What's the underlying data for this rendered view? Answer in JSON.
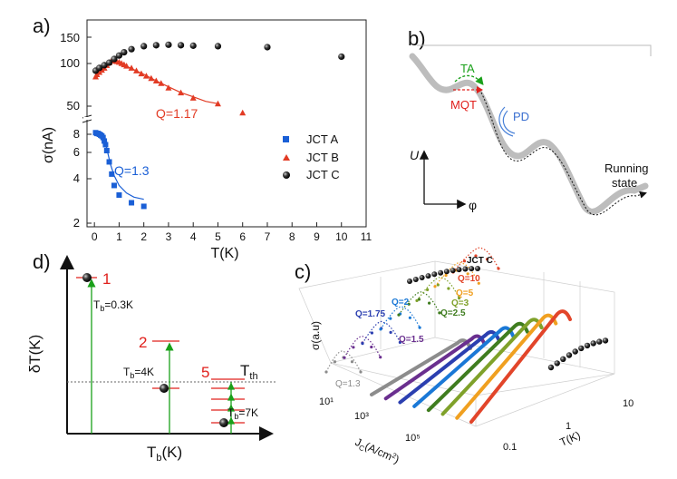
{
  "chart_data": [
    {
      "panel": "a)",
      "type": "scatter",
      "xlabel": "T(K)",
      "ylabel": "σ(nA)",
      "xlim": [
        -0.3,
        11
      ],
      "x_ticks": [
        "0",
        "1",
        "2",
        "3",
        "4",
        "5",
        "6",
        "7",
        "8",
        "9",
        "10",
        "11"
      ],
      "y_ticks_upper": [
        "50",
        "100",
        "150"
      ],
      "y_ticks_lower": [
        "2",
        "4",
        "6",
        "8"
      ],
      "series": [
        {
          "name": "JCT A",
          "color": "#1a5fd6",
          "marker": "square",
          "x": [
            0.05,
            0.1,
            0.15,
            0.2,
            0.25,
            0.3,
            0.35,
            0.4,
            0.45,
            0.5,
            0.6,
            0.7,
            0.8,
            1.0,
            1.5,
            2.0
          ],
          "y": [
            8.2,
            8.1,
            8.1,
            8.0,
            7.9,
            7.8,
            7.6,
            7.2,
            6.8,
            6.2,
            5.2,
            4.3,
            3.6,
            3.1,
            2.75,
            2.6
          ],
          "fit_label": "Q=1.3",
          "fit_x": [
            0.05,
            0.2,
            0.35,
            0.5,
            0.65,
            0.8,
            1.0,
            1.3,
            1.6,
            2.0
          ],
          "fit_y": [
            8.3,
            8.15,
            7.6,
            6.4,
            5.0,
            4.2,
            3.6,
            3.2,
            3.0,
            2.9
          ]
        },
        {
          "name": "JCT B",
          "color": "#e23b24",
          "marker": "triangle",
          "x": [
            0.05,
            0.1,
            0.2,
            0.3,
            0.4,
            0.5,
            0.6,
            0.7,
            0.8,
            0.9,
            1.0,
            1.1,
            1.2,
            1.3,
            1.5,
            1.7,
            1.9,
            2.1,
            2.3,
            2.5,
            2.7,
            3.0,
            3.5,
            4.0,
            5.0,
            6.0
          ],
          "y": [
            80,
            83,
            86,
            89,
            92,
            96,
            100,
            104,
            103,
            102,
            101,
            99,
            97,
            95,
            92,
            88,
            84,
            81,
            78,
            75,
            72,
            67,
            62,
            57,
            52,
            45
          ],
          "fit_label": "Q=1.17",
          "fit_x": [
            0.05,
            0.3,
            0.6,
            0.8,
            1.0,
            1.5,
            2.0,
            2.5,
            3.0,
            3.5,
            4.0,
            4.5,
            5.0
          ],
          "fit_y": [
            84,
            91,
            102,
            104,
            100,
            91,
            83,
            75,
            68,
            62,
            58,
            54,
            52
          ]
        },
        {
          "name": "JCT C",
          "color": "#111111",
          "marker": "sphere",
          "x": [
            0.05,
            0.2,
            0.4,
            0.6,
            0.8,
            1.0,
            1.2,
            1.5,
            2.0,
            2.5,
            3.0,
            3.5,
            4.0,
            5.0,
            7.0,
            10.0
          ],
          "y": [
            88,
            92,
            96,
            100,
            106,
            112,
            118,
            124,
            130,
            132,
            133,
            132,
            131,
            130,
            128,
            110
          ]
        }
      ]
    },
    {
      "panel": "c)",
      "type": "line",
      "title": "JCT C",
      "zlabel": "σ(a.u)",
      "xlabel": "T(K)",
      "ylabel": "J_C (A/cm²)",
      "x_ticks": [
        "0.1",
        "1",
        "10"
      ],
      "y_ticks": [
        "10¹",
        "10³",
        "10⁵"
      ],
      "series": [
        {
          "name": "Q=1.3",
          "color": "#8c8c8c"
        },
        {
          "name": "Q=1.5",
          "color": "#6a2f8f"
        },
        {
          "name": "Q=1.75",
          "color": "#2b3fb0"
        },
        {
          "name": "Q=2",
          "color": "#1a78d6"
        },
        {
          "name": "Q=2.5",
          "color": "#3f7d1f"
        },
        {
          "name": "Q=3",
          "color": "#7fa12a"
        },
        {
          "name": "Q=5",
          "color": "#f0a020"
        },
        {
          "name": "Q=10",
          "color": "#e2452a"
        }
      ]
    }
  ],
  "panel_b": {
    "label": "b)",
    "ta": "TA",
    "mqt": "MQT",
    "pd": "PD",
    "u_axis": "U",
    "phi_axis": "φ",
    "running_1": "Running",
    "running_2": "state"
  },
  "panel_d": {
    "label": "d)",
    "y_axis": "δT(K)",
    "x_axis_main": "T",
    "x_axis_sub": "b",
    "x_axis_unit": "(K)",
    "n1": "1",
    "n2": "2",
    "n5": "5",
    "tb1": "=0.3K",
    "tb2": "=4K",
    "tb3": "=7K",
    "tb_main": "T",
    "tb_sub": "b",
    "tth_main": "T",
    "tth_sub": "th"
  },
  "colors": {
    "red": "#e0201c",
    "green": "#1aa01a"
  }
}
